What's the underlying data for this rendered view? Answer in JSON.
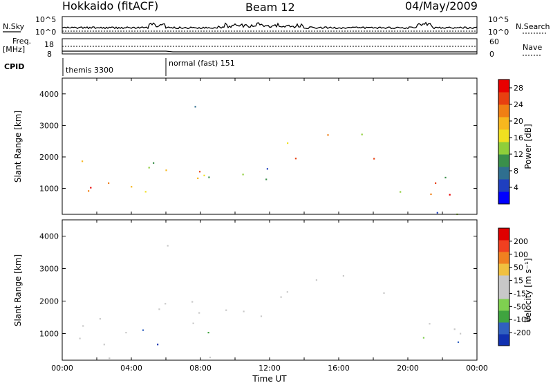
{
  "header": {
    "left": "Hokkaido (fitACF)",
    "center": "Beam 12",
    "right": "04/May/2009"
  },
  "top_panels": {
    "nsky_label": "N.Sky",
    "nsky_ticks": [
      "10^5",
      "10^0"
    ],
    "nsearch_label": "N.Search",
    "freq_label_line1": "Freq.",
    "freq_label_line2": "[MHz]",
    "freq_ticks": [
      "18",
      "8"
    ],
    "nave_ticks": [
      "60",
      "0"
    ],
    "nave_label": "Nave",
    "cpid_label": "CPID",
    "cpid_modes": [
      {
        "name": "themis 3300",
        "start_hour": 0
      },
      {
        "name": "normal (fast) 151",
        "start_hour": 6
      }
    ]
  },
  "colors": {
    "power_scale": [
      "#0000ff",
      "#1f3fbf",
      "#2f6f8f",
      "#3a8f4a",
      "#8fce3a",
      "#f0e020",
      "#f7b71e",
      "#f07f14",
      "#e84010",
      "#e80000"
    ],
    "velocity_scale": [
      "#1030b0",
      "#3060c0",
      "#3fa43f",
      "#7fd050",
      "#c8c8c8",
      "#c8c8c8",
      "#f0c040",
      "#f08020",
      "#f04020",
      "#e00000"
    ]
  },
  "chart_data": [
    {
      "type": "heatmap",
      "name": "Power",
      "xlabel": "",
      "ylabel": "Slant Range [km]",
      "x_range_hours": [
        0,
        24
      ],
      "xticks": [
        "00:00",
        "04:00",
        "08:00",
        "12:00",
        "16:00",
        "20:00",
        "00:00"
      ],
      "ylim": [
        180,
        4500
      ],
      "yticks": [
        1000,
        2000,
        3000,
        4000
      ],
      "colorbar": {
        "label": "Power [dB]",
        "ticks": [
          28,
          24,
          20,
          16,
          12,
          8,
          4
        ],
        "range": [
          0,
          30
        ]
      }
    },
    {
      "type": "heatmap",
      "name": "Velocity",
      "xlabel": "Time UT",
      "ylabel": "Slant Range [km]",
      "x_range_hours": [
        0,
        24
      ],
      "xticks": [
        "00:00",
        "04:00",
        "08:00",
        "12:00",
        "16:00",
        "20:00",
        "00:00"
      ],
      "ylim": [
        180,
        4500
      ],
      "yticks": [
        1000,
        2000,
        3000,
        4000
      ],
      "colorbar": {
        "label": "Velocity [m s⁻¹]",
        "ticks": [
          200,
          100,
          50,
          15,
          -15,
          -50,
          -100,
          -200
        ],
        "range": [
          -250,
          250
        ]
      }
    }
  ]
}
